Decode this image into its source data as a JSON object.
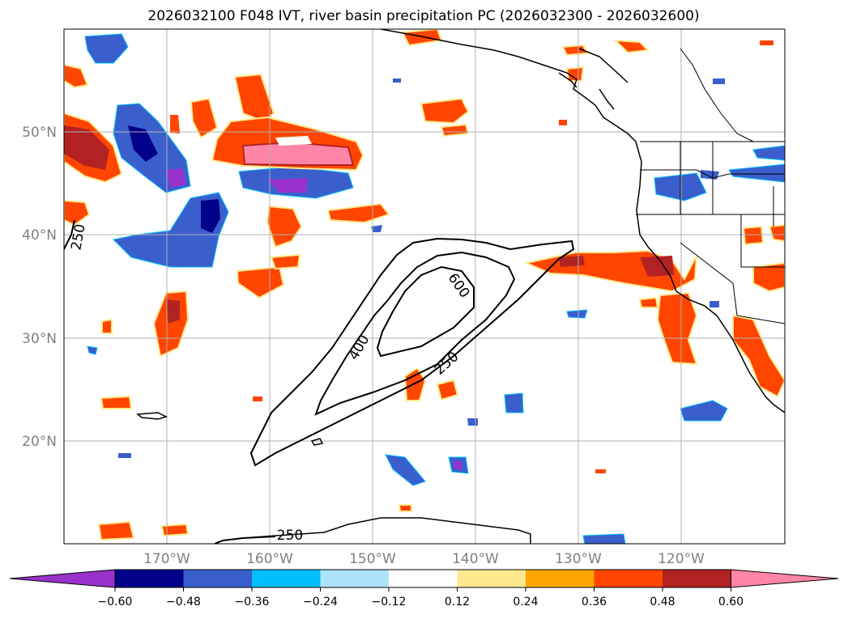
{
  "title": "2026032100 F048 IVT, river basin precipitation PC (2026032300 - 2026032600)",
  "lon_ticks": [
    "170°W",
    "160°W",
    "150°W",
    "140°W",
    "130°W",
    "120°W"
  ],
  "lat_ticks": [
    "50°N",
    "40°N",
    "30°N",
    "20°N"
  ],
  "colorbar": {
    "ticks": [
      "−0.60",
      "−0.48",
      "−0.36",
      "−0.24",
      "−0.12",
      "0.12",
      "0.24",
      "0.36",
      "0.48",
      "0.60"
    ],
    "colors": [
      "#9932CC",
      "#00008B",
      "#3A5FCD",
      "#00BFFF",
      "#ADE3F8",
      "#FFFFFF",
      "#FFE98F",
      "#FFA500",
      "#FF4500",
      "#B22222",
      "#FF85A8"
    ],
    "extend": "both"
  },
  "ivt_contours": {
    "levels_shown": [
      "250",
      "400",
      "600",
      "250",
      "250"
    ]
  },
  "map": {
    "lon_range": [
      -180,
      -110
    ],
    "lat_range": [
      10,
      60
    ],
    "grid": true
  }
}
